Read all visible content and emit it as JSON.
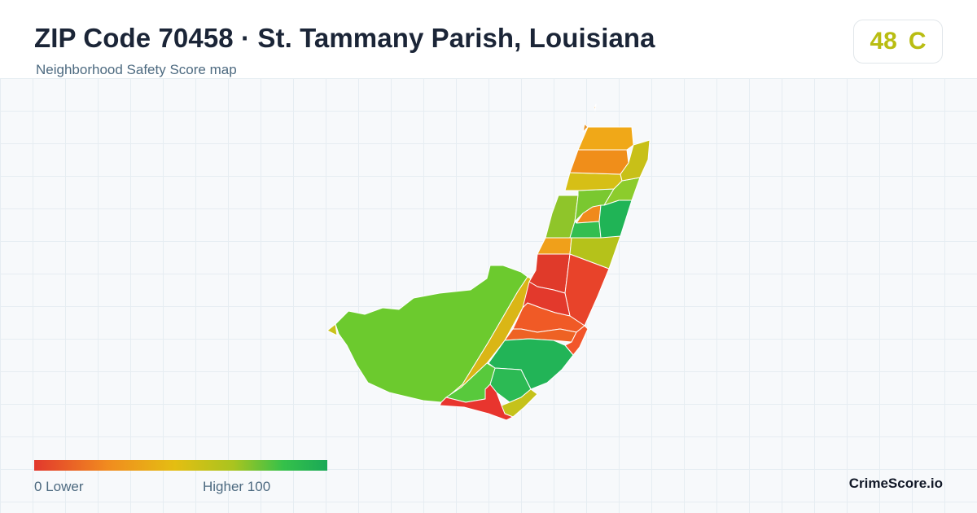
{
  "header": {
    "title": "ZIP Code 70458 · St. Tammany Parish, Louisiana",
    "subtitle": "Neighborhood Safety Score map"
  },
  "score": {
    "value": "48",
    "grade": "C",
    "color": "#b9bd12"
  },
  "legend": {
    "min_label": "0  Lower",
    "max_label": "Higher  100",
    "min_value": 0,
    "max_value": 100,
    "colors": [
      "#e2382d",
      "#f18b1f",
      "#e4be12",
      "#a9c41f",
      "#35c14a",
      "#1aa957"
    ]
  },
  "brand": "CrimeScore.io",
  "map_regions": [
    {
      "name": "north-tip",
      "color": "#e8962a"
    },
    {
      "name": "north-a",
      "color": "#f0a818"
    },
    {
      "name": "north-b",
      "color": "#f08e1a"
    },
    {
      "name": "north-east-strip",
      "color": "#c8c018"
    },
    {
      "name": "north-c",
      "color": "#d6bf16"
    },
    {
      "name": "mid-a",
      "color": "#8fc52a"
    },
    {
      "name": "mid-b",
      "color": "#7ac830"
    },
    {
      "name": "mid-c",
      "color": "#8ccc2c"
    },
    {
      "name": "mid-d",
      "color": "#f08a1c"
    },
    {
      "name": "mid-e",
      "color": "#20b456"
    },
    {
      "name": "mid-f",
      "color": "#34be50"
    },
    {
      "name": "mid-g",
      "color": "#b5c21a"
    },
    {
      "name": "mid-h",
      "color": "#f0a01a"
    },
    {
      "name": "center-red-a",
      "color": "#e03a2a"
    },
    {
      "name": "center-red-b",
      "color": "#e3392c"
    },
    {
      "name": "center-orange-a",
      "color": "#f05a26"
    },
    {
      "name": "center-orange-b",
      "color": "#ee6224"
    },
    {
      "name": "center-orange-c",
      "color": "#f2552a"
    },
    {
      "name": "east-red",
      "color": "#e8432a"
    },
    {
      "name": "west-large",
      "color": "#6cca2e"
    },
    {
      "name": "diagonal-strip",
      "color": "#dab616"
    },
    {
      "name": "south-green-a",
      "color": "#22b457"
    },
    {
      "name": "south-green-b",
      "color": "#2cba54"
    },
    {
      "name": "south-lime",
      "color": "#58c93c"
    },
    {
      "name": "south-yellow",
      "color": "#c5c21b"
    },
    {
      "name": "south-red",
      "color": "#e8352e"
    },
    {
      "name": "west-nub",
      "color": "#c9c21a"
    }
  ]
}
